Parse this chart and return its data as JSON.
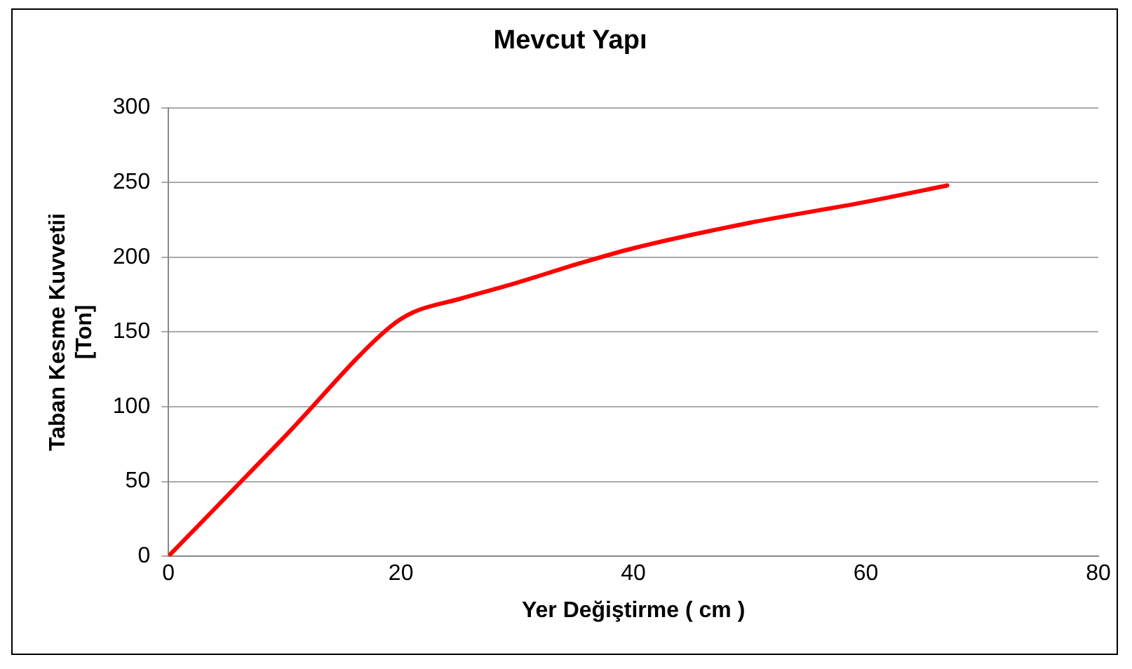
{
  "chart_data": {
    "type": "line",
    "title": "Mevcut Yapı",
    "xlabel": "Yer Değiştirme ( cm )",
    "ylabel": "Taban Kesme Kuvvetii [Ton]",
    "series": [
      {
        "color": "#ff0000",
        "x": [
          0,
          10,
          19,
          21,
          25,
          30,
          35,
          40,
          50,
          60,
          67
        ],
        "values": [
          0,
          80,
          153,
          163,
          172,
          183,
          195,
          206,
          223,
          237,
          248
        ]
      }
    ],
    "xlim": [
      0,
      80
    ],
    "xticks": [
      0,
      20,
      40,
      60,
      80
    ],
    "ylim": [
      0,
      300
    ],
    "yticks": [
      0,
      50,
      100,
      150,
      200,
      250,
      300
    ],
    "grid": "y",
    "legend": false,
    "marker": "none",
    "line_style": "solid"
  }
}
